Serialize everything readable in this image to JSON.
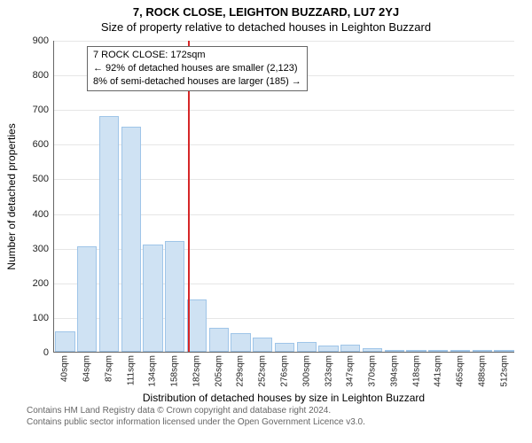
{
  "titles": {
    "line1": "7, ROCK CLOSE, LEIGHTON BUZZARD, LU7 2YJ",
    "line2": "Size of property relative to detached houses in Leighton Buzzard"
  },
  "ylabel": "Number of detached properties",
  "xlabel": "Distribution of detached houses by size in Leighton Buzzard",
  "source": {
    "line1": "Contains HM Land Registry data © Crown copyright and database right 2024.",
    "line2": "Contains public sector information licensed under the Open Government Licence v3.0."
  },
  "chart": {
    "type": "histogram",
    "ylim": [
      0,
      900
    ],
    "ytick_step": 100,
    "bar_fill": "#cfe2f3",
    "bar_border": "#9fc5e8",
    "grid_color": "#e6e6e6",
    "axis_color": "#666666",
    "marker_color": "#d62728",
    "background_color": "#ffffff",
    "x_categories": [
      "40sqm",
      "64sqm",
      "87sqm",
      "111sqm",
      "134sqm",
      "158sqm",
      "182sqm",
      "205sqm",
      "229sqm",
      "252sqm",
      "276sqm",
      "300sqm",
      "323sqm",
      "347sqm",
      "370sqm",
      "394sqm",
      "418sqm",
      "441sqm",
      "465sqm",
      "488sqm",
      "512sqm"
    ],
    "values": [
      60,
      305,
      680,
      650,
      310,
      320,
      150,
      70,
      55,
      40,
      25,
      28,
      18,
      20,
      10,
      2,
      0,
      2,
      6,
      4,
      2
    ],
    "marker_x_index": 5.6
  },
  "callout": {
    "line1": "7 ROCK CLOSE: 172sqm",
    "line2": "← 92% of detached houses are smaller (2,123)",
    "line3": "8% of semi-detached houses are larger (185) →"
  }
}
